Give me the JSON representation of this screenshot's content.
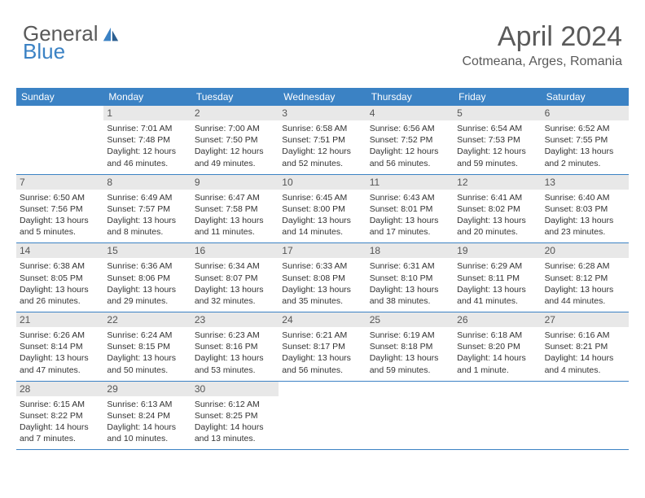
{
  "logo": {
    "text_top": "General",
    "text_bottom": "Blue",
    "icon_color": "#3b82c4"
  },
  "header": {
    "month": "April 2024",
    "location": "Cotmeana, Arges, Romania"
  },
  "colors": {
    "header_bg": "#3b82c4",
    "day_head_bg": "#e8e8e8",
    "text": "#333333",
    "title_text": "#5a5a5a",
    "row_border": "#3b82c4",
    "background": "#ffffff"
  },
  "dow": [
    "Sunday",
    "Monday",
    "Tuesday",
    "Wednesday",
    "Thursday",
    "Friday",
    "Saturday"
  ],
  "weeks": [
    [
      null,
      {
        "n": "1",
        "sr": "Sunrise: 7:01 AM",
        "ss": "Sunset: 7:48 PM",
        "d1": "Daylight: 12 hours",
        "d2": "and 46 minutes."
      },
      {
        "n": "2",
        "sr": "Sunrise: 7:00 AM",
        "ss": "Sunset: 7:50 PM",
        "d1": "Daylight: 12 hours",
        "d2": "and 49 minutes."
      },
      {
        "n": "3",
        "sr": "Sunrise: 6:58 AM",
        "ss": "Sunset: 7:51 PM",
        "d1": "Daylight: 12 hours",
        "d2": "and 52 minutes."
      },
      {
        "n": "4",
        "sr": "Sunrise: 6:56 AM",
        "ss": "Sunset: 7:52 PM",
        "d1": "Daylight: 12 hours",
        "d2": "and 56 minutes."
      },
      {
        "n": "5",
        "sr": "Sunrise: 6:54 AM",
        "ss": "Sunset: 7:53 PM",
        "d1": "Daylight: 12 hours",
        "d2": "and 59 minutes."
      },
      {
        "n": "6",
        "sr": "Sunrise: 6:52 AM",
        "ss": "Sunset: 7:55 PM",
        "d1": "Daylight: 13 hours",
        "d2": "and 2 minutes."
      }
    ],
    [
      {
        "n": "7",
        "sr": "Sunrise: 6:50 AM",
        "ss": "Sunset: 7:56 PM",
        "d1": "Daylight: 13 hours",
        "d2": "and 5 minutes."
      },
      {
        "n": "8",
        "sr": "Sunrise: 6:49 AM",
        "ss": "Sunset: 7:57 PM",
        "d1": "Daylight: 13 hours",
        "d2": "and 8 minutes."
      },
      {
        "n": "9",
        "sr": "Sunrise: 6:47 AM",
        "ss": "Sunset: 7:58 PM",
        "d1": "Daylight: 13 hours",
        "d2": "and 11 minutes."
      },
      {
        "n": "10",
        "sr": "Sunrise: 6:45 AM",
        "ss": "Sunset: 8:00 PM",
        "d1": "Daylight: 13 hours",
        "d2": "and 14 minutes."
      },
      {
        "n": "11",
        "sr": "Sunrise: 6:43 AM",
        "ss": "Sunset: 8:01 PM",
        "d1": "Daylight: 13 hours",
        "d2": "and 17 minutes."
      },
      {
        "n": "12",
        "sr": "Sunrise: 6:41 AM",
        "ss": "Sunset: 8:02 PM",
        "d1": "Daylight: 13 hours",
        "d2": "and 20 minutes."
      },
      {
        "n": "13",
        "sr": "Sunrise: 6:40 AM",
        "ss": "Sunset: 8:03 PM",
        "d1": "Daylight: 13 hours",
        "d2": "and 23 minutes."
      }
    ],
    [
      {
        "n": "14",
        "sr": "Sunrise: 6:38 AM",
        "ss": "Sunset: 8:05 PM",
        "d1": "Daylight: 13 hours",
        "d2": "and 26 minutes."
      },
      {
        "n": "15",
        "sr": "Sunrise: 6:36 AM",
        "ss": "Sunset: 8:06 PM",
        "d1": "Daylight: 13 hours",
        "d2": "and 29 minutes."
      },
      {
        "n": "16",
        "sr": "Sunrise: 6:34 AM",
        "ss": "Sunset: 8:07 PM",
        "d1": "Daylight: 13 hours",
        "d2": "and 32 minutes."
      },
      {
        "n": "17",
        "sr": "Sunrise: 6:33 AM",
        "ss": "Sunset: 8:08 PM",
        "d1": "Daylight: 13 hours",
        "d2": "and 35 minutes."
      },
      {
        "n": "18",
        "sr": "Sunrise: 6:31 AM",
        "ss": "Sunset: 8:10 PM",
        "d1": "Daylight: 13 hours",
        "d2": "and 38 minutes."
      },
      {
        "n": "19",
        "sr": "Sunrise: 6:29 AM",
        "ss": "Sunset: 8:11 PM",
        "d1": "Daylight: 13 hours",
        "d2": "and 41 minutes."
      },
      {
        "n": "20",
        "sr": "Sunrise: 6:28 AM",
        "ss": "Sunset: 8:12 PM",
        "d1": "Daylight: 13 hours",
        "d2": "and 44 minutes."
      }
    ],
    [
      {
        "n": "21",
        "sr": "Sunrise: 6:26 AM",
        "ss": "Sunset: 8:14 PM",
        "d1": "Daylight: 13 hours",
        "d2": "and 47 minutes."
      },
      {
        "n": "22",
        "sr": "Sunrise: 6:24 AM",
        "ss": "Sunset: 8:15 PM",
        "d1": "Daylight: 13 hours",
        "d2": "and 50 minutes."
      },
      {
        "n": "23",
        "sr": "Sunrise: 6:23 AM",
        "ss": "Sunset: 8:16 PM",
        "d1": "Daylight: 13 hours",
        "d2": "and 53 minutes."
      },
      {
        "n": "24",
        "sr": "Sunrise: 6:21 AM",
        "ss": "Sunset: 8:17 PM",
        "d1": "Daylight: 13 hours",
        "d2": "and 56 minutes."
      },
      {
        "n": "25",
        "sr": "Sunrise: 6:19 AM",
        "ss": "Sunset: 8:18 PM",
        "d1": "Daylight: 13 hours",
        "d2": "and 59 minutes."
      },
      {
        "n": "26",
        "sr": "Sunrise: 6:18 AM",
        "ss": "Sunset: 8:20 PM",
        "d1": "Daylight: 14 hours",
        "d2": "and 1 minute."
      },
      {
        "n": "27",
        "sr": "Sunrise: 6:16 AM",
        "ss": "Sunset: 8:21 PM",
        "d1": "Daylight: 14 hours",
        "d2": "and 4 minutes."
      }
    ],
    [
      {
        "n": "28",
        "sr": "Sunrise: 6:15 AM",
        "ss": "Sunset: 8:22 PM",
        "d1": "Daylight: 14 hours",
        "d2": "and 7 minutes."
      },
      {
        "n": "29",
        "sr": "Sunrise: 6:13 AM",
        "ss": "Sunset: 8:24 PM",
        "d1": "Daylight: 14 hours",
        "d2": "and 10 minutes."
      },
      {
        "n": "30",
        "sr": "Sunrise: 6:12 AM",
        "ss": "Sunset: 8:25 PM",
        "d1": "Daylight: 14 hours",
        "d2": "and 13 minutes."
      },
      null,
      null,
      null,
      null
    ]
  ]
}
